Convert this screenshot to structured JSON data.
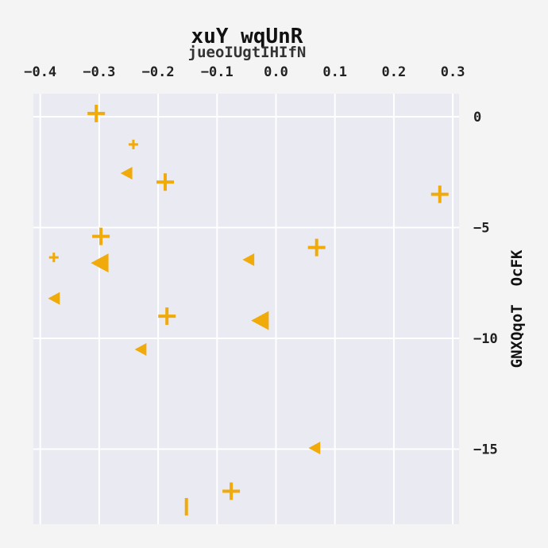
{
  "chart_data": {
    "type": "scatter",
    "title": "xuY wqUnR",
    "subtitle": "jueoIUgtIHIfN",
    "xlabel": "",
    "ylabel": "GNXQqoT  OcFK",
    "x_ticks": [
      "−0.4",
      "−0.3",
      "−0.2",
      "−0.1",
      "0.0",
      "0.1",
      "0.2",
      "0.3"
    ],
    "y_ticks": [
      "0",
      "−5",
      "−10",
      "−15"
    ],
    "xlim": [
      -0.413,
      0.31
    ],
    "ylim": [
      -18.2,
      1.0
    ],
    "x_axis_position": "top",
    "y_axis_position": "right",
    "grid": true,
    "marker_color": "#f0aa0a",
    "points": [
      {
        "x": -0.305,
        "y": 0.15,
        "marker": "plus",
        "size": "large"
      },
      {
        "x": -0.242,
        "y": -1.25,
        "marker": "plus",
        "size": "small"
      },
      {
        "x": -0.253,
        "y": -2.55,
        "marker": "triangle-left",
        "size": "medium"
      },
      {
        "x": -0.188,
        "y": -2.95,
        "marker": "plus",
        "size": "large"
      },
      {
        "x": 0.278,
        "y": -3.5,
        "marker": "plus",
        "size": "large"
      },
      {
        "x": -0.297,
        "y": -5.4,
        "marker": "plus",
        "size": "large"
      },
      {
        "x": 0.069,
        "y": -5.9,
        "marker": "plus",
        "size": "large"
      },
      {
        "x": -0.377,
        "y": -6.35,
        "marker": "plus",
        "size": "small"
      },
      {
        "x": -0.298,
        "y": -6.6,
        "marker": "triangle-left",
        "size": "large"
      },
      {
        "x": -0.046,
        "y": -6.45,
        "marker": "triangle-left",
        "size": "medium"
      },
      {
        "x": -0.376,
        "y": -8.2,
        "marker": "triangle-left",
        "size": "medium"
      },
      {
        "x": -0.185,
        "y": -9.0,
        "marker": "plus",
        "size": "large"
      },
      {
        "x": -0.026,
        "y": -9.2,
        "marker": "triangle-left",
        "size": "large"
      },
      {
        "x": -0.229,
        "y": -10.5,
        "marker": "triangle-left",
        "size": "medium"
      },
      {
        "x": 0.066,
        "y": -14.95,
        "marker": "triangle-left",
        "size": "medium"
      },
      {
        "x": -0.076,
        "y": -16.9,
        "marker": "plus",
        "size": "large"
      },
      {
        "x": -0.152,
        "y": -17.6,
        "marker": "vline",
        "size": "large"
      }
    ]
  }
}
